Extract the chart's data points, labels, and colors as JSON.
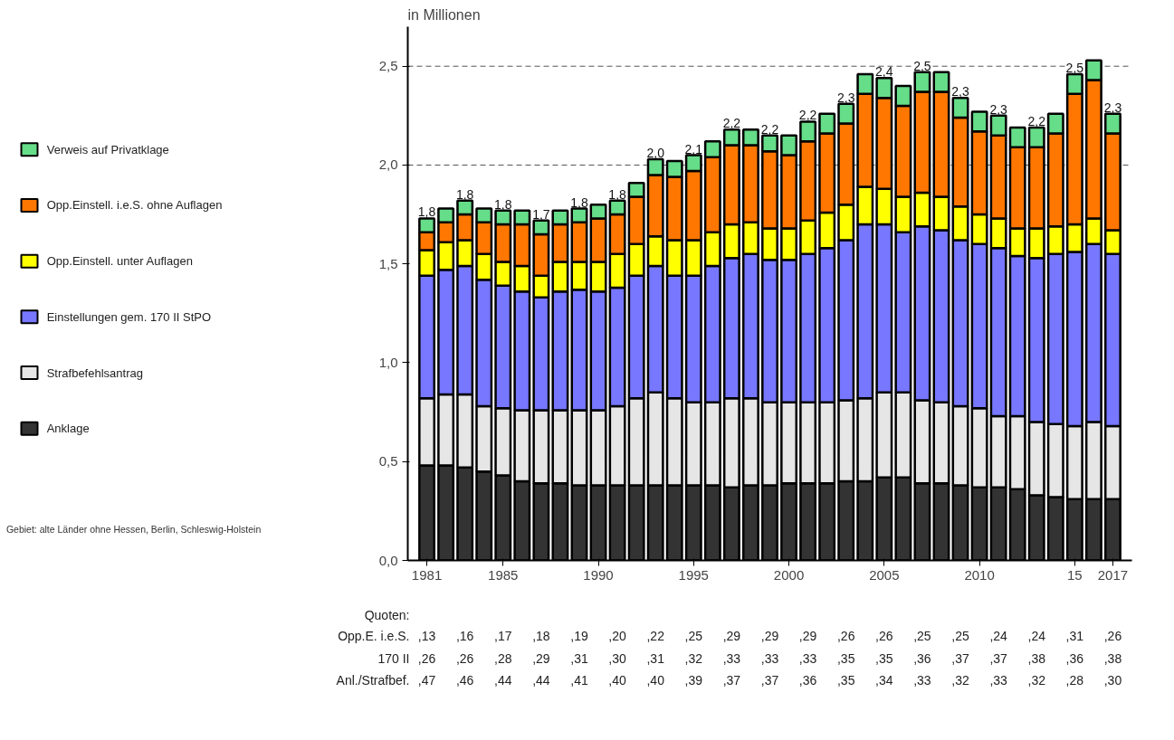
{
  "chart_data": {
    "type": "bar",
    "stacked": true,
    "ylabel": "in Millionen",
    "x": [
      1981,
      1982,
      1983,
      1984,
      1985,
      1986,
      1987,
      1988,
      1989,
      1990,
      1991,
      1992,
      1993,
      1994,
      1995,
      1996,
      1997,
      1998,
      1999,
      2000,
      2001,
      2002,
      2003,
      2004,
      2005,
      2006,
      2007,
      2008,
      2009,
      2010,
      2011,
      2012,
      2013,
      2014,
      2015,
      2016,
      2017
    ],
    "xlim": [
      1980,
      2018
    ],
    "xticks": [
      1981,
      1985,
      1990,
      1995,
      2000,
      2005,
      2010,
      {
        "value": 2015,
        "label": "15"
      },
      2017
    ],
    "ylim": [
      0,
      2.7
    ],
    "yticks": [
      {
        "value": 0,
        "label": "0,0"
      },
      {
        "value": 0.5,
        "label": "0,5"
      },
      {
        "value": 1.0,
        "label": "1,0"
      },
      {
        "value": 1.5,
        "label": "1,5"
      },
      {
        "value": 2.0,
        "label": "2,0"
      },
      {
        "value": 2.5,
        "label": "2,5"
      }
    ],
    "series": [
      {
        "name": "Anklage",
        "color": "#333333",
        "values": [
          0.48,
          0.48,
          0.47,
          0.45,
          0.43,
          0.4,
          0.39,
          0.39,
          0.38,
          0.38,
          0.38,
          0.38,
          0.38,
          0.38,
          0.38,
          0.38,
          0.37,
          0.38,
          0.38,
          0.39,
          0.39,
          0.39,
          0.4,
          0.4,
          0.42,
          0.42,
          0.39,
          0.39,
          0.38,
          0.37,
          0.37,
          0.36,
          0.33,
          0.32,
          0.31,
          0.31,
          0.31
        ]
      },
      {
        "name": "Strafbefehlsantrag",
        "color": "#e6e6e6",
        "values": [
          0.34,
          0.36,
          0.37,
          0.33,
          0.34,
          0.36,
          0.37,
          0.37,
          0.38,
          0.38,
          0.4,
          0.44,
          0.47,
          0.44,
          0.42,
          0.42,
          0.45,
          0.44,
          0.42,
          0.41,
          0.41,
          0.41,
          0.41,
          0.42,
          0.43,
          0.43,
          0.42,
          0.41,
          0.4,
          0.4,
          0.36,
          0.37,
          0.37,
          0.37,
          0.37,
          0.39,
          0.37
        ]
      },
      {
        "name": "Einstellungen gem. 170 II StPO",
        "color": "#7777ff",
        "values": [
          0.62,
          0.63,
          0.65,
          0.64,
          0.62,
          0.6,
          0.57,
          0.6,
          0.61,
          0.6,
          0.6,
          0.62,
          0.64,
          0.62,
          0.64,
          0.69,
          0.71,
          0.73,
          0.72,
          0.72,
          0.75,
          0.78,
          0.81,
          0.88,
          0.85,
          0.81,
          0.88,
          0.87,
          0.84,
          0.83,
          0.85,
          0.81,
          0.83,
          0.86,
          0.88,
          0.9,
          0.87
        ]
      },
      {
        "name": "Opp.Einstell. unter Auflagen",
        "color": "#ffff00",
        "values": [
          0.13,
          0.14,
          0.13,
          0.13,
          0.12,
          0.13,
          0.11,
          0.15,
          0.14,
          0.15,
          0.17,
          0.16,
          0.15,
          0.18,
          0.18,
          0.17,
          0.17,
          0.16,
          0.16,
          0.16,
          0.17,
          0.18,
          0.18,
          0.19,
          0.18,
          0.18,
          0.17,
          0.17,
          0.17,
          0.15,
          0.15,
          0.14,
          0.15,
          0.14,
          0.14,
          0.13,
          0.12
        ]
      },
      {
        "name": "Opp.Einstell. i.e.S. ohne Auflagen",
        "color": "#ff7700",
        "values": [
          0.09,
          0.1,
          0.13,
          0.16,
          0.19,
          0.21,
          0.21,
          0.19,
          0.2,
          0.22,
          0.2,
          0.24,
          0.31,
          0.32,
          0.35,
          0.38,
          0.4,
          0.39,
          0.39,
          0.37,
          0.4,
          0.4,
          0.41,
          0.47,
          0.46,
          0.46,
          0.51,
          0.53,
          0.45,
          0.42,
          0.42,
          0.41,
          0.41,
          0.47,
          0.66,
          0.7,
          0.49
        ]
      },
      {
        "name": "Verweis auf Privatklage",
        "color": "#66dd88",
        "values": [
          0.07,
          0.07,
          0.07,
          0.07,
          0.07,
          0.07,
          0.07,
          0.07,
          0.07,
          0.07,
          0.07,
          0.07,
          0.08,
          0.08,
          0.08,
          0.08,
          0.08,
          0.08,
          0.08,
          0.1,
          0.1,
          0.1,
          0.1,
          0.1,
          0.1,
          0.1,
          0.1,
          0.1,
          0.1,
          0.1,
          0.1,
          0.1,
          0.1,
          0.1,
          0.1,
          0.1,
          0.1
        ]
      }
    ],
    "totals": [
      "1,8",
      null,
      "1,8",
      null,
      "1,8",
      null,
      "1,7",
      null,
      "1,8",
      null,
      "1,8",
      null,
      "2,0",
      null,
      "2,1",
      null,
      "2,2",
      null,
      "2,2",
      null,
      "2,2",
      null,
      "2,3",
      null,
      "2,4",
      null,
      "2,5",
      null,
      "2,3",
      null,
      "2,3",
      null,
      "2,2",
      null,
      "2,5",
      null,
      "2,3"
    ],
    "ref_lines": [
      {
        "axis": "y",
        "value": 2.0,
        "line_style": "dashed",
        "color": "#555555"
      },
      {
        "axis": "y",
        "value": 2.5,
        "line_style": "dashed",
        "color": "#555555"
      }
    ],
    "legend": "left",
    "annotations": [
      "Quoten:",
      "Opp.E. i.e.S.",
      ",13 ,16 ,17 ,18 ,19 ,20 ,22 ,25 ,29 ,29 ,29 ,26 ,26 ,25 ,25 ,24 ,24 ,31 ,26",
      "170 II",
      ",26 ,26 ,28 ,29 ,31 ,30 ,31 ,32 ,33 ,33 ,33 ,35 ,35 ,36 ,37 ,37 ,38 ,36 ,38",
      "Anl./Strafbef.",
      ",47 ,46 ,44 ,44 ,41 ,40 ,40 ,39 ,37 ,37 ,36 ,35 ,34 ,33 ,32 ,33 ,32 ,28 ,30",
      "Gebiet: alte Länder ohne Hessen, Berlin, Schleswig-Holstein"
    ]
  }
}
